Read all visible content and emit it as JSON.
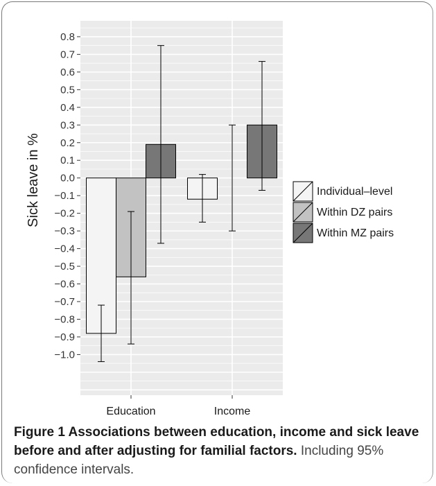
{
  "chart_data": {
    "type": "bar",
    "categories": [
      "Education",
      "Income"
    ],
    "series": [
      {
        "name": "Individual–level",
        "color": "#f4f4f4",
        "values": [
          -0.88,
          -0.12
        ],
        "ci_low": [
          -1.04,
          -0.25
        ],
        "ci_high": [
          -0.72,
          0.02
        ]
      },
      {
        "name": "Within DZ pairs",
        "color": "#c2c2c2",
        "values": [
          -0.56,
          0.0
        ],
        "ci_low": [
          -0.94,
          -0.3
        ],
        "ci_high": [
          -0.19,
          0.3
        ]
      },
      {
        "name": "Within MZ pairs",
        "color": "#777777",
        "values": [
          0.19,
          0.3
        ],
        "ci_low": [
          -0.37,
          -0.07
        ],
        "ci_high": [
          0.75,
          0.66
        ]
      }
    ],
    "ylabel": "Sick leave in %",
    "xlabel": "",
    "ylim": [
      -1.23,
      0.89
    ],
    "yticks": [
      -1.0,
      -0.9,
      -0.8,
      -0.7,
      -0.6,
      -0.5,
      -0.4,
      -0.3,
      -0.2,
      -0.1,
      0.0,
      0.1,
      0.2,
      0.3,
      0.4,
      0.5,
      0.6,
      0.7,
      0.8
    ],
    "ytick_labels": [
      "−1.0",
      "−0.9",
      "−0.8",
      "−0.7",
      "−0.6",
      "−0.5",
      "−0.4",
      "−0.3",
      "−0.2",
      "−0.1",
      "0.0",
      "0.1",
      "0.2",
      "0.3",
      "0.4",
      "0.5",
      "0.6",
      "0.7",
      "0.8"
    ],
    "grid": true,
    "legend_position": "right",
    "panel_color": "#ebebeb"
  },
  "caption": {
    "bold": "Figure 1 Associations between education, income and sick leave before and after adjusting for familial factors.",
    "rest": "Including 95% confidence intervals."
  }
}
